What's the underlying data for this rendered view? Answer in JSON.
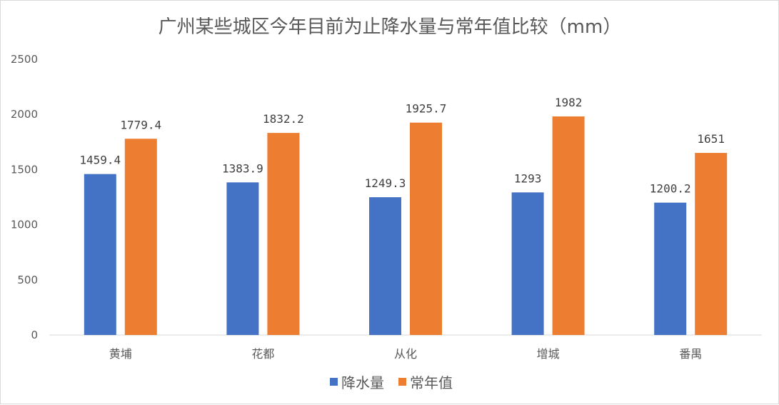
{
  "chart_data": {
    "type": "bar",
    "title": "广州某些城区今年目前为止降水量与常年值比较（mm）",
    "categories": [
      "黄埔",
      "花都",
      "从化",
      "增城",
      "番禺"
    ],
    "series": [
      {
        "name": "降水量",
        "values": [
          1459.4,
          1383.9,
          1249.3,
          1293,
          1200.2
        ],
        "labels": [
          "1459.4",
          "1383.9",
          "1249.3",
          "1293",
          "1200.2"
        ],
        "color": "#4472C4"
      },
      {
        "name": "常年值",
        "values": [
          1779.4,
          1832.2,
          1925.7,
          1982,
          1651
        ],
        "labels": [
          "1779.4",
          "1832.2",
          "1925.7",
          "1982",
          "1651"
        ],
        "color": "#ED7D31"
      }
    ],
    "ylim": [
      0,
      2500
    ],
    "yticks": [
      "0",
      "500",
      "1000",
      "1500",
      "2000",
      "2500"
    ],
    "grid": false,
    "legend_position": "bottom",
    "xlabel": "",
    "ylabel": ""
  }
}
